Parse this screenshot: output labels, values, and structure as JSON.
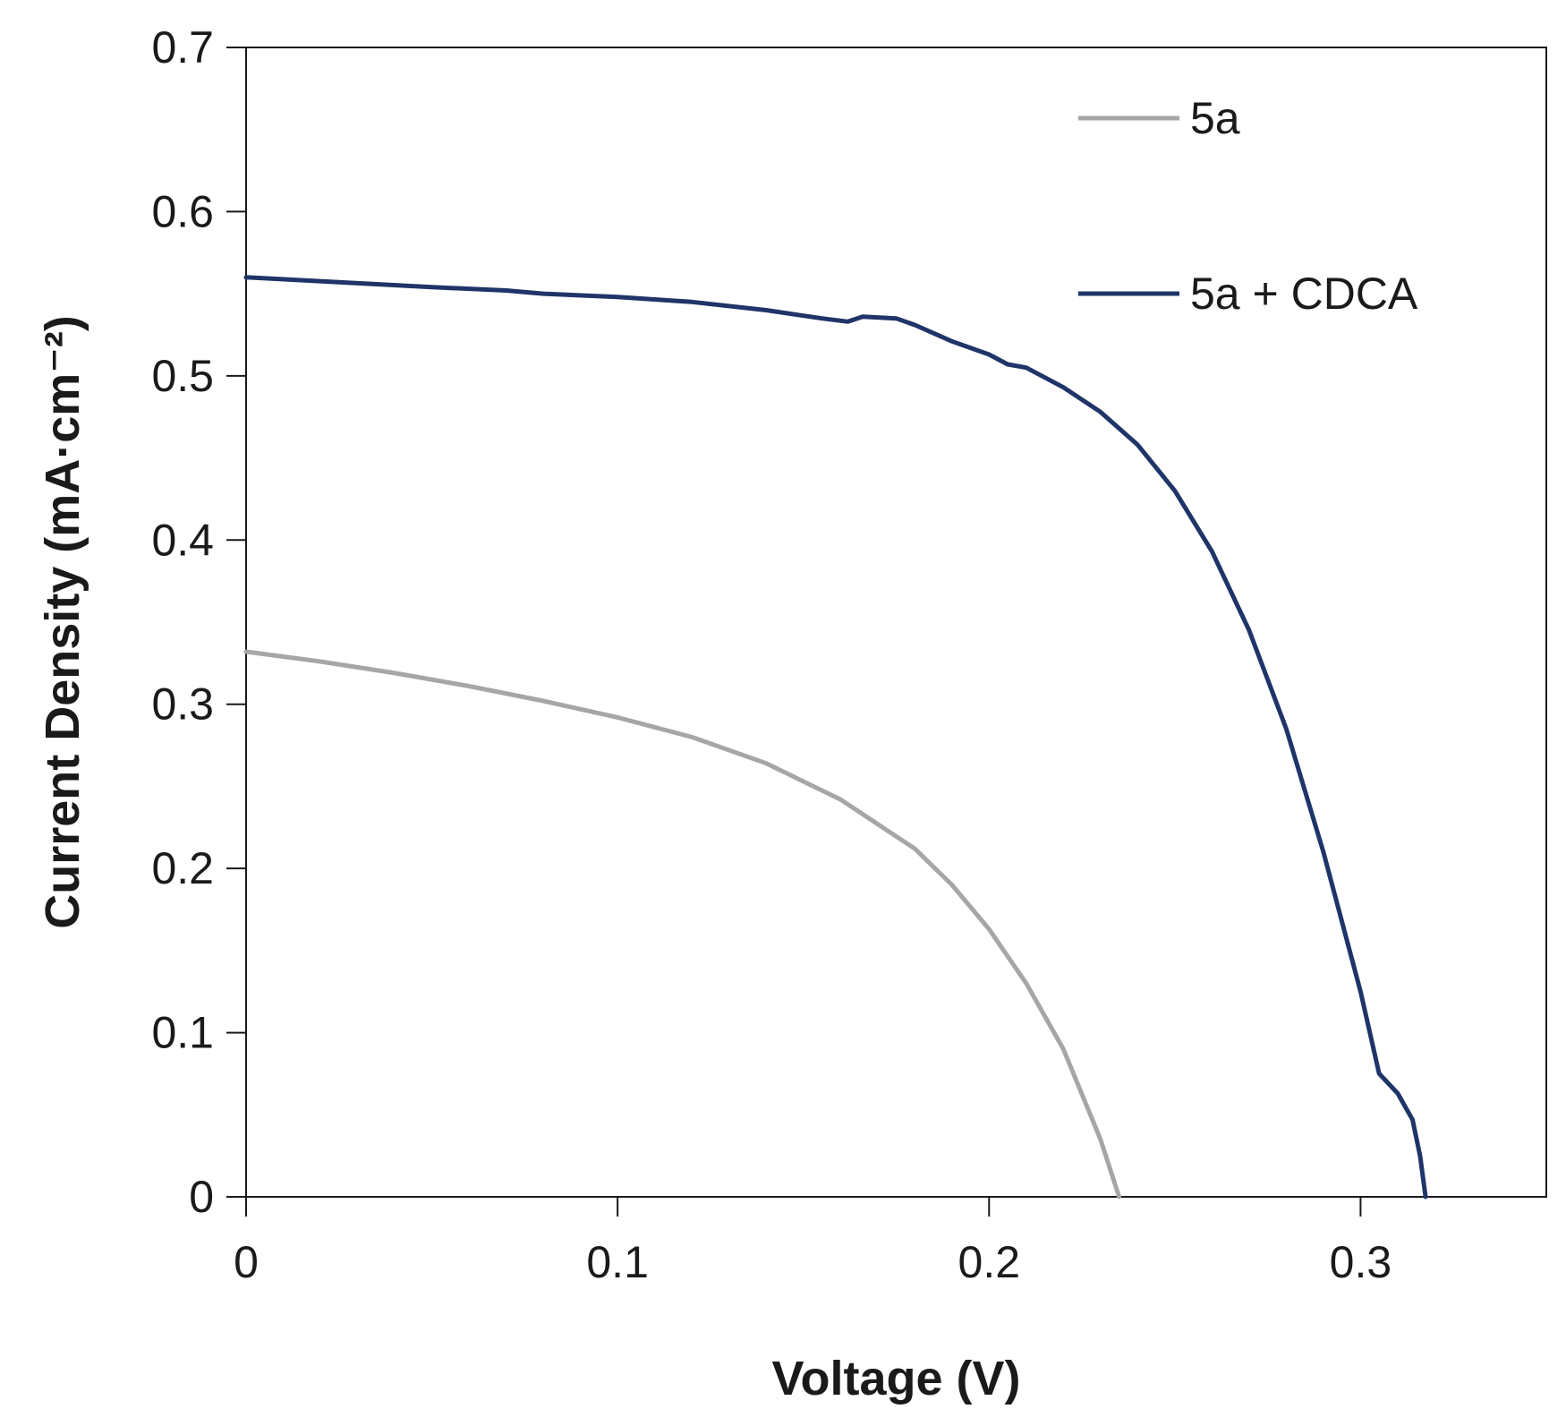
{
  "chart_data": {
    "type": "line",
    "xlabel": "Voltage (V)",
    "ylabel": "Current Density (mA·cm⁻²)",
    "xlim": [
      0,
      0.35
    ],
    "ylim": [
      0,
      0.7
    ],
    "xticks": [
      0,
      0.1,
      0.2,
      0.3
    ],
    "xtick_labels": [
      "0",
      "0.1",
      "0.2",
      "0.3"
    ],
    "yticks": [
      0,
      0.1,
      0.2,
      0.3,
      0.4,
      0.5,
      0.6,
      0.7
    ],
    "ytick_labels": [
      "0",
      "0.1",
      "0.2",
      "0.3",
      "0.4",
      "0.5",
      "0.6",
      "0.7"
    ],
    "grid": false,
    "legend_position": "top-right",
    "series": [
      {
        "name": "5a",
        "color": "#a6a6a6",
        "x": [
          0,
          0.02,
          0.04,
          0.06,
          0.08,
          0.1,
          0.12,
          0.14,
          0.16,
          0.18,
          0.19,
          0.2,
          0.21,
          0.22,
          0.23,
          0.235
        ],
        "y": [
          0.332,
          0.326,
          0.319,
          0.311,
          0.302,
          0.292,
          0.28,
          0.264,
          0.242,
          0.212,
          0.19,
          0.163,
          0.13,
          0.09,
          0.035,
          0.0
        ]
      },
      {
        "name": "5a + CDCA",
        "color": "#1f3468",
        "x": [
          0,
          0.025,
          0.05,
          0.07,
          0.08,
          0.1,
          0.12,
          0.14,
          0.155,
          0.162,
          0.166,
          0.175,
          0.18,
          0.19,
          0.2,
          0.205,
          0.21,
          0.22,
          0.23,
          0.24,
          0.25,
          0.26,
          0.27,
          0.28,
          0.29,
          0.3,
          0.305,
          0.31,
          0.314,
          0.316,
          0.3175
        ],
        "y": [
          0.56,
          0.557,
          0.554,
          0.552,
          0.55,
          0.548,
          0.545,
          0.54,
          0.535,
          0.533,
          0.536,
          0.535,
          0.531,
          0.521,
          0.513,
          0.507,
          0.505,
          0.493,
          0.478,
          0.458,
          0.43,
          0.393,
          0.345,
          0.285,
          0.21,
          0.125,
          0.075,
          0.063,
          0.047,
          0.025,
          0.0
        ]
      }
    ]
  }
}
